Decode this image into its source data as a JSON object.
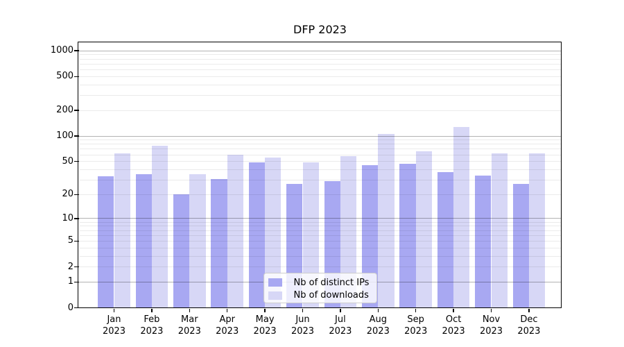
{
  "title": "DFP 2023",
  "legend": {
    "items": [
      {
        "label": "Nb of distinct IPs",
        "color": "#a8a8f2"
      },
      {
        "label": "Nb of downloads",
        "color": "#d7d7f6"
      }
    ]
  },
  "chart_data": {
    "type": "bar",
    "title": "DFP 2023",
    "categories": [
      "Jan",
      "Feb",
      "Mar",
      "Apr",
      "May",
      "Jun",
      "Jul",
      "Aug",
      "Sep",
      "Oct",
      "Nov",
      "Dec"
    ],
    "year": "2023",
    "series": [
      {
        "name": "Nb of distinct IPs",
        "color": "#a8a8f2",
        "values": [
          33,
          35,
          20,
          31,
          49,
          27,
          29,
          45,
          47,
          37,
          34,
          27
        ]
      },
      {
        "name": "Nb of downloads",
        "color": "#d7d7f6",
        "values": [
          63,
          77,
          35,
          60,
          56,
          49,
          58,
          105,
          66,
          128,
          63,
          63
        ]
      }
    ],
    "xlabel": "",
    "ylabel": "",
    "yscale": "log(1+y)",
    "yticks": [
      0,
      1,
      2,
      5,
      10,
      20,
      50,
      100,
      200,
      500,
      1000
    ],
    "ylim": [
      0,
      1250
    ],
    "grid": "on",
    "grid_major_at": [
      1,
      10,
      100,
      1000
    ],
    "legend_position": "lower center"
  }
}
